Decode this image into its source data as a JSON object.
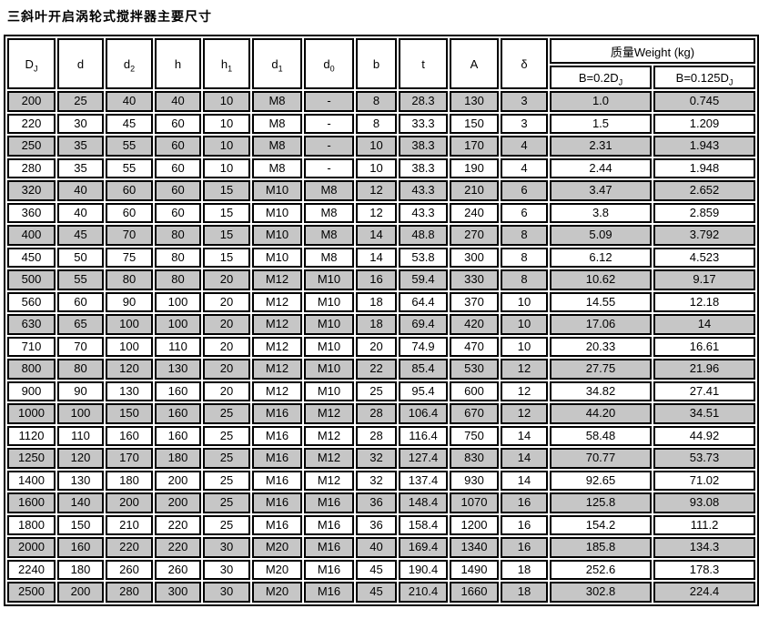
{
  "title": "三斜叶开启涡轮式搅拌器主要尺寸",
  "table": {
    "columns": [
      {
        "base": "D",
        "sub": "J"
      },
      {
        "base": "d",
        "sub": ""
      },
      {
        "base": "d",
        "sub": "2"
      },
      {
        "base": "h",
        "sub": ""
      },
      {
        "base": "h",
        "sub": "1"
      },
      {
        "base": "d",
        "sub": "1"
      },
      {
        "base": "d",
        "sub": "0"
      },
      {
        "base": "b",
        "sub": ""
      },
      {
        "base": "t",
        "sub": ""
      },
      {
        "base": "A",
        "sub": ""
      },
      {
        "base": "δ",
        "sub": ""
      }
    ],
    "weight_group": {
      "label": "质量Weight (kg)",
      "sub_columns": [
        {
          "base": "B=0.2D",
          "sub": "J"
        },
        {
          "base": "B=0.125D",
          "sub": "J"
        }
      ]
    },
    "rows": [
      [
        "200",
        "25",
        "40",
        "40",
        "10",
        "M8",
        "-",
        "8",
        "28.3",
        "130",
        "3",
        "1.0",
        "0.745"
      ],
      [
        "220",
        "30",
        "45",
        "60",
        "10",
        "M8",
        "-",
        "8",
        "33.3",
        "150",
        "3",
        "1.5",
        "1.209"
      ],
      [
        "250",
        "35",
        "55",
        "60",
        "10",
        "M8",
        "-",
        "10",
        "38.3",
        "170",
        "4",
        "2.31",
        "1.943"
      ],
      [
        "280",
        "35",
        "55",
        "60",
        "10",
        "M8",
        "-",
        "10",
        "38.3",
        "190",
        "4",
        "2.44",
        "1.948"
      ],
      [
        "320",
        "40",
        "60",
        "60",
        "15",
        "M10",
        "M8",
        "12",
        "43.3",
        "210",
        "6",
        "3.47",
        "2.652"
      ],
      [
        "360",
        "40",
        "60",
        "60",
        "15",
        "M10",
        "M8",
        "12",
        "43.3",
        "240",
        "6",
        "3.8",
        "2.859"
      ],
      [
        "400",
        "45",
        "70",
        "80",
        "15",
        "M10",
        "M8",
        "14",
        "48.8",
        "270",
        "8",
        "5.09",
        "3.792"
      ],
      [
        "450",
        "50",
        "75",
        "80",
        "15",
        "M10",
        "M8",
        "14",
        "53.8",
        "300",
        "8",
        "6.12",
        "4.523"
      ],
      [
        "500",
        "55",
        "80",
        "80",
        "20",
        "M12",
        "M10",
        "16",
        "59.4",
        "330",
        "8",
        "10.62",
        "9.17"
      ],
      [
        "560",
        "60",
        "90",
        "100",
        "20",
        "M12",
        "M10",
        "18",
        "64.4",
        "370",
        "10",
        "14.55",
        "12.18"
      ],
      [
        "630",
        "65",
        "100",
        "100",
        "20",
        "M12",
        "M10",
        "18",
        "69.4",
        "420",
        "10",
        "17.06",
        "14"
      ],
      [
        "710",
        "70",
        "100",
        "110",
        "20",
        "M12",
        "M10",
        "20",
        "74.9",
        "470",
        "10",
        "20.33",
        "16.61"
      ],
      [
        "800",
        "80",
        "120",
        "130",
        "20",
        "M12",
        "M10",
        "22",
        "85.4",
        "530",
        "12",
        "27.75",
        "21.96"
      ],
      [
        "900",
        "90",
        "130",
        "160",
        "20",
        "M12",
        "M10",
        "25",
        "95.4",
        "600",
        "12",
        "34.82",
        "27.41"
      ],
      [
        "1000",
        "100",
        "150",
        "160",
        "25",
        "M16",
        "M12",
        "28",
        "106.4",
        "670",
        "12",
        "44.20",
        "34.51"
      ],
      [
        "1120",
        "110",
        "160",
        "160",
        "25",
        "M16",
        "M12",
        "28",
        "116.4",
        "750",
        "14",
        "58.48",
        "44.92"
      ],
      [
        "1250",
        "120",
        "170",
        "180",
        "25",
        "M16",
        "M12",
        "32",
        "127.4",
        "830",
        "14",
        "70.77",
        "53.73"
      ],
      [
        "1400",
        "130",
        "180",
        "200",
        "25",
        "M16",
        "M12",
        "32",
        "137.4",
        "930",
        "14",
        "92.65",
        "71.02"
      ],
      [
        "1600",
        "140",
        "200",
        "200",
        "25",
        "M16",
        "M16",
        "36",
        "148.4",
        "1070",
        "16",
        "125.8",
        "93.08"
      ],
      [
        "1800",
        "150",
        "210",
        "220",
        "25",
        "M16",
        "M16",
        "36",
        "158.4",
        "1200",
        "16",
        "154.2",
        "111.2"
      ],
      [
        "2000",
        "160",
        "220",
        "220",
        "30",
        "M20",
        "M16",
        "40",
        "169.4",
        "1340",
        "16",
        "185.8",
        "134.3"
      ],
      [
        "2240",
        "180",
        "260",
        "260",
        "30",
        "M20",
        "M16",
        "45",
        "190.4",
        "1490",
        "18",
        "252.6",
        "178.3"
      ],
      [
        "2500",
        "200",
        "280",
        "300",
        "30",
        "M20",
        "M16",
        "45",
        "210.4",
        "1660",
        "18",
        "302.8",
        "224.4"
      ]
    ],
    "colors": {
      "row_shaded": "#c6c6c6",
      "row_plain": "#ffffff",
      "border": "#000000",
      "text": "#000000"
    }
  }
}
